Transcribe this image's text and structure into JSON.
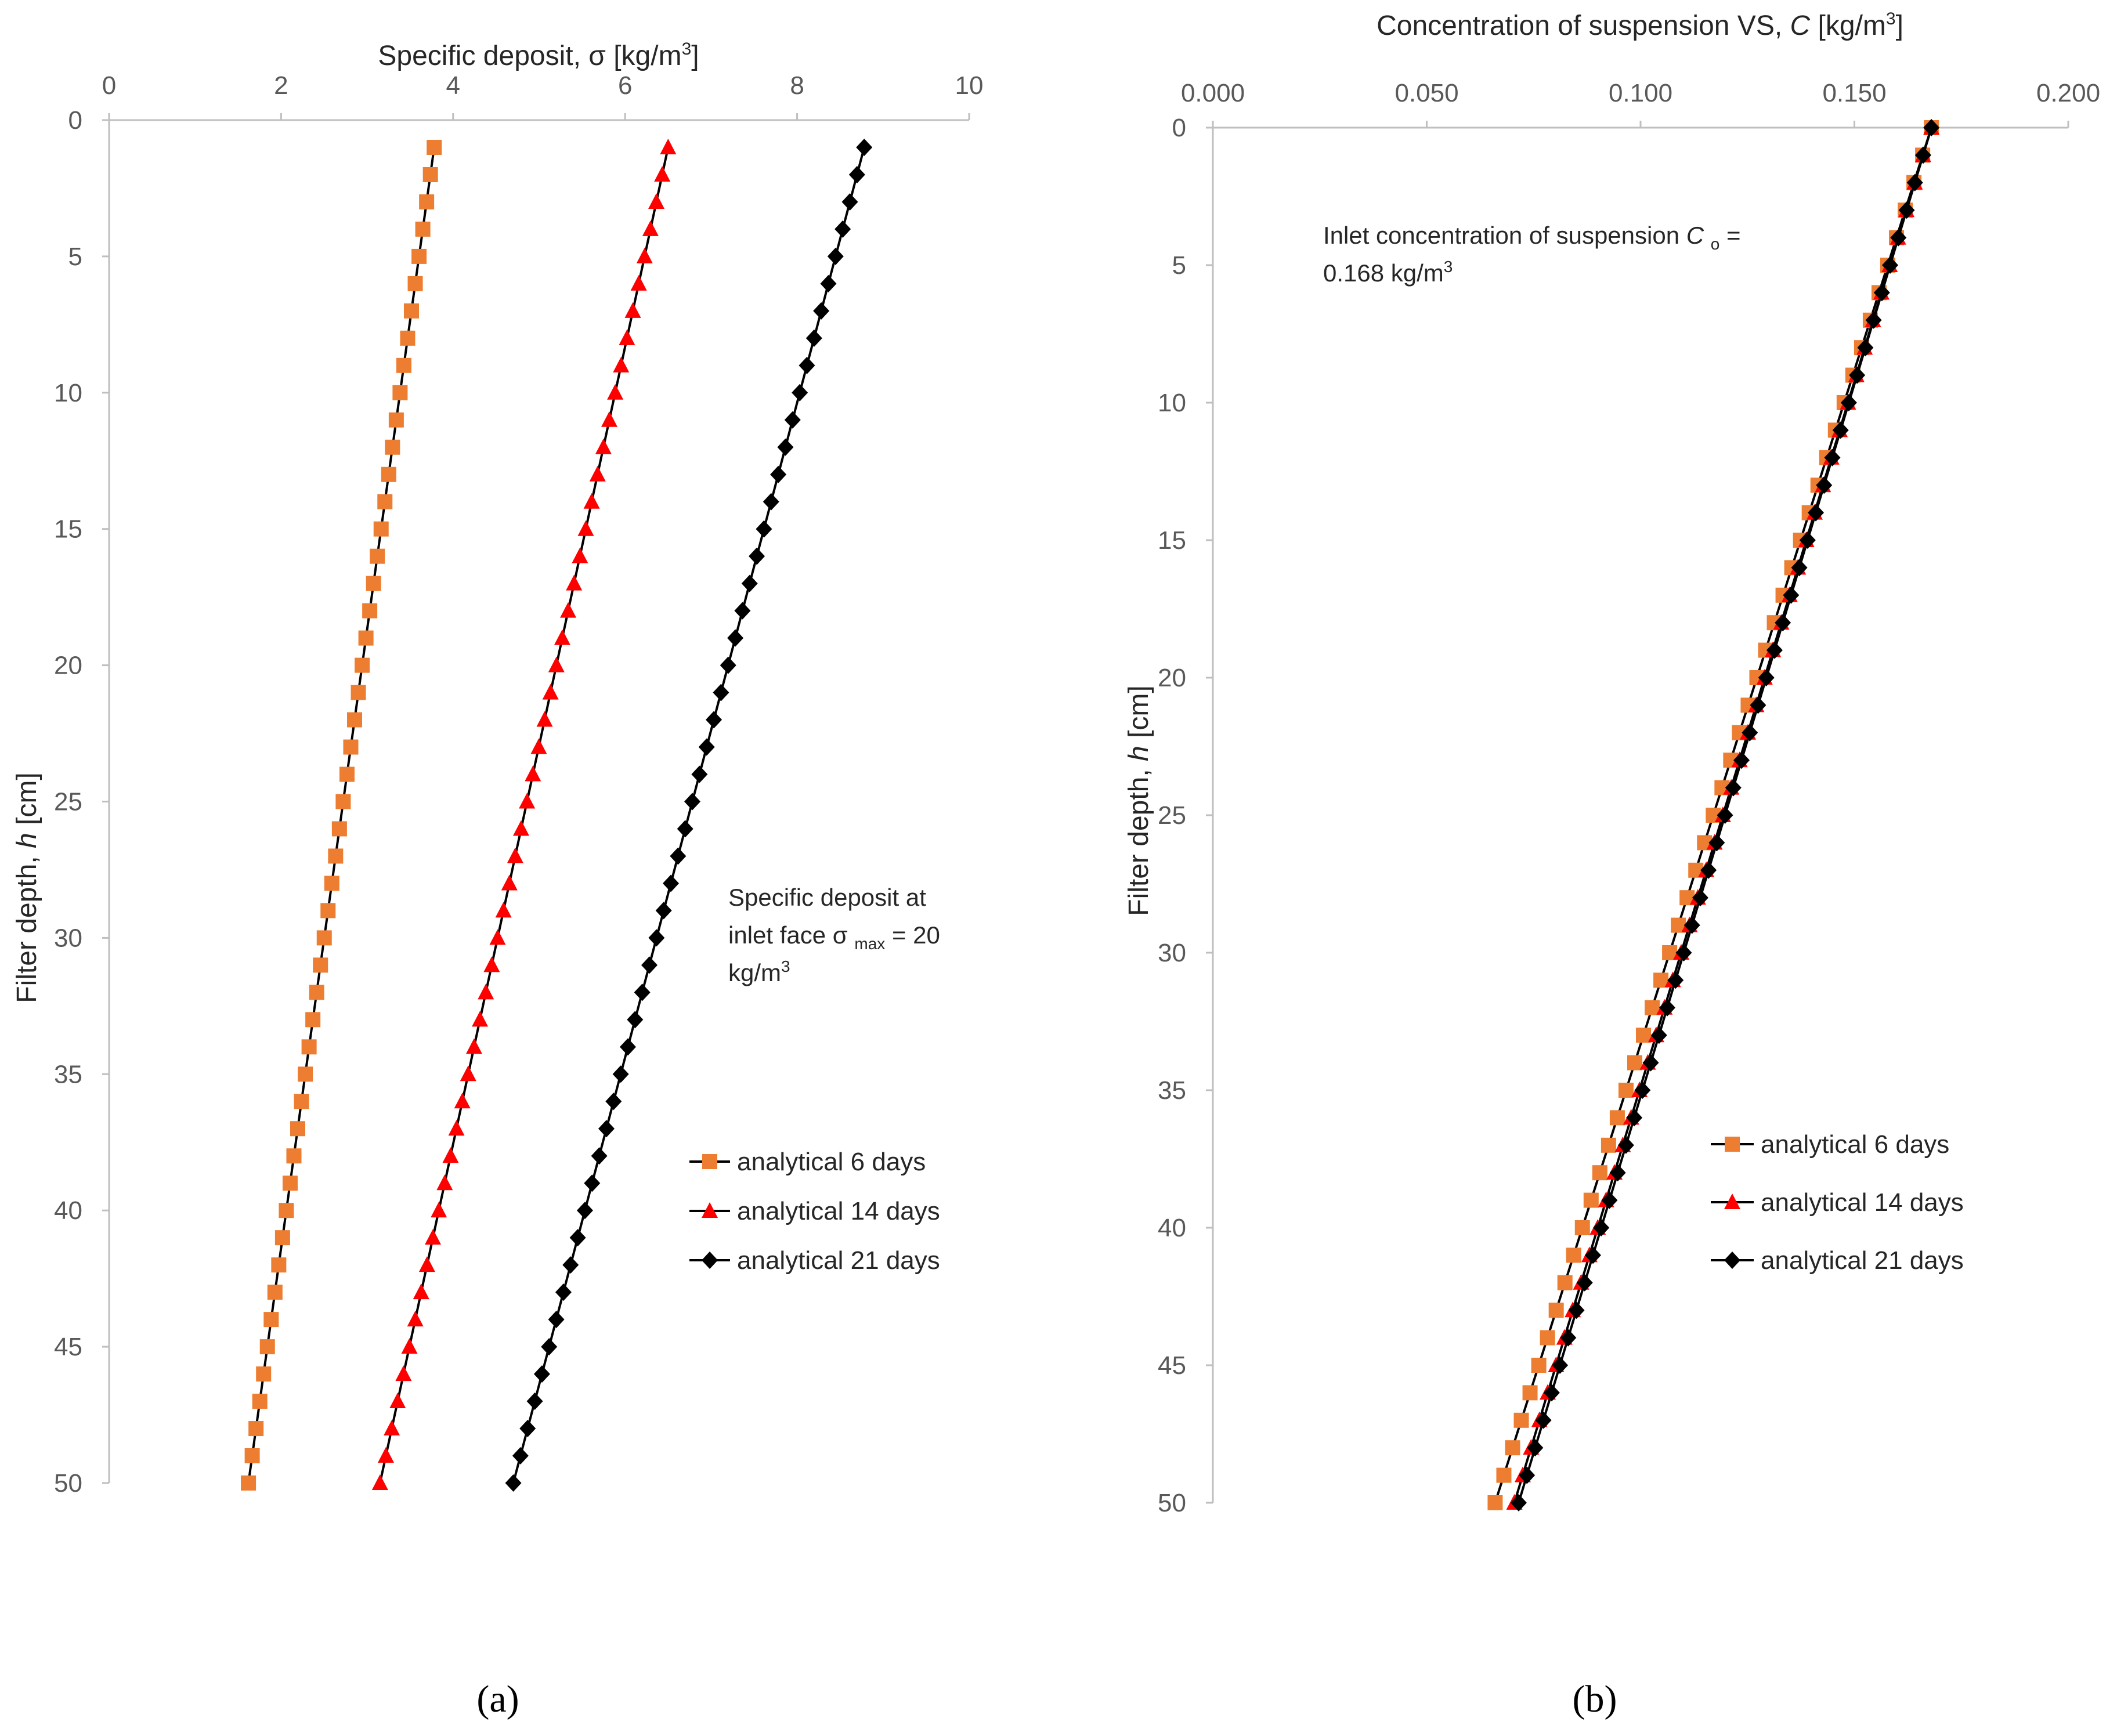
{
  "captions": {
    "a": "(a)",
    "b": "(b)"
  },
  "colors": {
    "series_6": "#ed7d31",
    "series_14": "#ff0000",
    "series_21": "#000000",
    "line": "#000000"
  },
  "chart_data": [
    {
      "id": "a",
      "type": "line",
      "title": "",
      "xlabel": "Specific deposit, σ [kg/m3]",
      "ylabel": "Filter depth, h [cm]",
      "xlim": [
        0,
        10
      ],
      "ylim": [
        0,
        50
      ],
      "y_inverted": true,
      "x_axis_position": "top",
      "x_ticks": [
        0,
        2,
        4,
        6,
        8,
        10
      ],
      "x_tick_labels": [
        "0",
        "2",
        "4",
        "6",
        "8",
        "10"
      ],
      "y_ticks": [
        0,
        5,
        10,
        15,
        20,
        25,
        30,
        35,
        40,
        45,
        50
      ],
      "y_tick_labels": [
        "0",
        "5",
        "10",
        "15",
        "20",
        "25",
        "30",
        "35",
        "40",
        "45",
        "50"
      ],
      "grid": false,
      "legend_position": "right",
      "annotation": {
        "line1": "Specific deposit at",
        "line2a": "inlet face σ",
        "line2sub": "max",
        "line2b": " = 20",
        "line3": "kg/m3"
      },
      "series": [
        {
          "name": "analytical 6 days",
          "marker": "square",
          "color": "#ed7d31",
          "depth_start": 1,
          "depth_end": 50,
          "value_start": 3.78,
          "value_end": 1.62
        },
        {
          "name": "analytical 14 days",
          "marker": "triangle",
          "color": "#ff0000",
          "depth_start": 1,
          "depth_end": 50,
          "value_start": 6.5,
          "value_end": 3.15
        },
        {
          "name": "analytical 21 days",
          "marker": "diamond",
          "color": "#000000",
          "depth_start": 1,
          "depth_end": 50,
          "value_start": 8.78,
          "value_end": 4.7
        }
      ]
    },
    {
      "id": "b",
      "type": "line",
      "title": "",
      "xlabel": "Concentration of suspension VS, C [kg/m3]",
      "ylabel": "Filter depth, h [cm]",
      "xlim": [
        0,
        0.2
      ],
      "ylim": [
        0,
        50
      ],
      "y_inverted": true,
      "x_axis_position": "top",
      "x_ticks": [
        0,
        0.05,
        0.1,
        0.15,
        0.2
      ],
      "x_tick_labels": [
        "0.000",
        "0.050",
        "0.100",
        "0.150",
        "0.200"
      ],
      "y_ticks": [
        0,
        5,
        10,
        15,
        20,
        25,
        30,
        35,
        40,
        45,
        50
      ],
      "y_tick_labels": [
        "0",
        "5",
        "10",
        "15",
        "20",
        "25",
        "30",
        "35",
        "40",
        "45",
        "50"
      ],
      "grid": false,
      "legend_position": "right",
      "annotation": {
        "line1a": "Inlet concentration of suspension ",
        "line1c": "C",
        "line1sub": "o",
        "line1b": "=",
        "line2": "0.168 kg/m3"
      },
      "series": [
        {
          "name": "analytical 6 days",
          "marker": "square",
          "color": "#ed7d31",
          "depth_start": 0,
          "depth_end": 50,
          "value_start": 0.168,
          "value_end": 0.066
        },
        {
          "name": "analytical 14 days",
          "marker": "triangle",
          "color": "#ff0000",
          "depth_start": 0,
          "depth_end": 50,
          "value_start": 0.168,
          "value_end": 0.0705
        },
        {
          "name": "analytical 21 days",
          "marker": "diamond",
          "color": "#000000",
          "depth_start": 0,
          "depth_end": 50,
          "value_start": 0.168,
          "value_end": 0.0715
        }
      ]
    }
  ]
}
